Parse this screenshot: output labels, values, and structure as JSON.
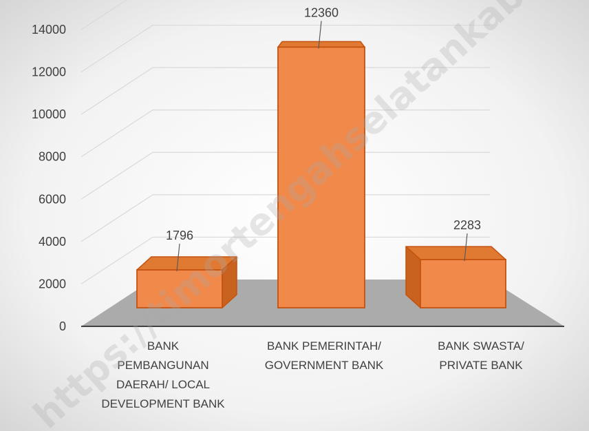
{
  "chart_data": {
    "type": "bar",
    "categories": [
      [
        "BANK",
        "PEMBANGUNAN",
        "DAERAH/ LOCAL",
        "DEVELOPMENT BANK"
      ],
      [
        "BANK PEMERINTAH/",
        "GOVERNMENT BANK"
      ],
      [
        "BANK SWASTA/",
        "PRIVATE BANK"
      ]
    ],
    "values": [
      1796,
      12360,
      2283
    ],
    "data_labels": [
      "1796",
      "12360",
      "2283"
    ],
    "yticks": [
      0,
      2000,
      4000,
      6000,
      8000,
      10000,
      12000,
      14000
    ],
    "ylim": [
      0,
      14000
    ],
    "title": "",
    "xlabel": "",
    "ylabel": "",
    "style": "3d-column",
    "grid": true,
    "legend": "none",
    "colors": {
      "bar_front": "#f0894a",
      "bar_side": "#c9621e",
      "bar_top": "#e07a33",
      "bar_edge": "#c4520f",
      "floor": "#a6a6a6",
      "gridline": "#d9d9d9",
      "axis": "#404040",
      "background_center": "#ffffff",
      "background_edge": "#d9d9d9"
    }
  },
  "watermark": "https://timortengahselatankab.bps.go.id"
}
